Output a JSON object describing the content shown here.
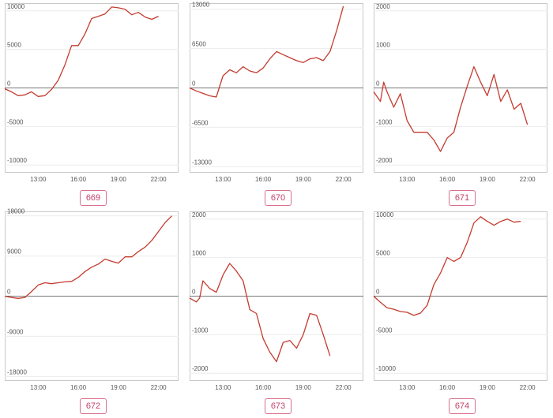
{
  "chart_data": [
    {
      "type": "line",
      "label": "669",
      "ylim": [
        -11000,
        11000
      ],
      "yticks": [
        10000,
        5000,
        0,
        -5000,
        -10000
      ],
      "xlim": [
        10.5,
        23.5
      ],
      "xticks": [
        {
          "v": 13,
          "t": "13:00"
        },
        {
          "v": 16,
          "t": "16:00"
        },
        {
          "v": 19,
          "t": "19:00"
        },
        {
          "v": 22,
          "t": "22:00"
        }
      ],
      "x": [
        10.5,
        11,
        11.5,
        12,
        12.5,
        13,
        13.5,
        14,
        14.5,
        15,
        15.5,
        16,
        16.5,
        17,
        17.5,
        18,
        18.5,
        19,
        19.5,
        20,
        20.5,
        21,
        21.5,
        22
      ],
      "values": [
        -100,
        -500,
        -1000,
        -900,
        -500,
        -1100,
        -1000,
        -200,
        1000,
        3000,
        5500,
        5500,
        7000,
        9000,
        9300,
        9600,
        10500,
        10400,
        10200,
        9500,
        9800,
        9200,
        8900,
        9300
      ]
    },
    {
      "type": "line",
      "label": "670",
      "ylim": [
        -14000,
        14000
      ],
      "yticks": [
        13000,
        6500,
        0,
        -6500,
        -13000
      ],
      "xlim": [
        10.5,
        23.5
      ],
      "xticks": [
        {
          "v": 13,
          "t": "13:00"
        },
        {
          "v": 16,
          "t": "16:00"
        },
        {
          "v": 19,
          "t": "19:00"
        },
        {
          "v": 22,
          "t": "22:00"
        }
      ],
      "x": [
        10.5,
        11,
        11.5,
        12,
        12.5,
        13,
        13.5,
        14,
        14.5,
        15,
        15.5,
        16,
        16.5,
        17,
        17.5,
        18,
        18.5,
        19,
        19.5,
        20,
        20.5,
        21,
        21.5,
        22
      ],
      "values": [
        0,
        -500,
        -900,
        -1300,
        -1500,
        2000,
        3000,
        2500,
        3500,
        2800,
        2500,
        3300,
        4800,
        6000,
        5500,
        5000,
        4500,
        4200,
        4800,
        5000,
        4500,
        6000,
        9500,
        13500
      ]
    },
    {
      "type": "line",
      "label": "671",
      "ylim": [
        -2200,
        2200
      ],
      "yticks": [
        2000,
        1000,
        0,
        -1000,
        -2000
      ],
      "xlim": [
        10.5,
        23.5
      ],
      "xticks": [
        {
          "v": 13,
          "t": "13:00"
        },
        {
          "v": 16,
          "t": "16:00"
        },
        {
          "v": 19,
          "t": "19:00"
        },
        {
          "v": 22,
          "t": "22:00"
        }
      ],
      "x": [
        10.5,
        11,
        11.25,
        11.5,
        12,
        12.5,
        13,
        13.5,
        14,
        14.5,
        15,
        15.5,
        16,
        16.5,
        17,
        17.5,
        18,
        18.5,
        19,
        19.5,
        20,
        20.5,
        21,
        21.5,
        22
      ],
      "values": [
        -100,
        -350,
        150,
        -100,
        -500,
        -150,
        -850,
        -1150,
        -1150,
        -1150,
        -1350,
        -1650,
        -1300,
        -1150,
        -500,
        50,
        550,
        150,
        -200,
        350,
        -350,
        -50,
        -550,
        -400,
        -950
      ]
    },
    {
      "type": "line",
      "label": "672",
      "ylim": [
        -19000,
        19000
      ],
      "yticks": [
        18000,
        9000,
        0,
        -9000,
        -18000
      ],
      "xlim": [
        10.5,
        23.5
      ],
      "xticks": [
        {
          "v": 13,
          "t": "13:00"
        },
        {
          "v": 16,
          "t": "16:00"
        },
        {
          "v": 19,
          "t": "19:00"
        },
        {
          "v": 22,
          "t": "22:00"
        }
      ],
      "x": [
        10.5,
        11,
        11.5,
        12,
        12.5,
        13,
        13.5,
        14,
        14.5,
        15,
        15.5,
        16,
        16.5,
        17,
        17.5,
        18,
        18.5,
        19,
        19.5,
        20,
        20.5,
        21,
        21.5,
        22,
        22.5,
        23
      ],
      "values": [
        0,
        -300,
        -500,
        -300,
        1000,
        2500,
        3000,
        2800,
        3000,
        3200,
        3300,
        4200,
        5500,
        6500,
        7200,
        8300,
        7800,
        7400,
        8800,
        8800,
        10000,
        11000,
        12500,
        14500,
        16500,
        18000
      ]
    },
    {
      "type": "line",
      "label": "673",
      "ylim": [
        -2200,
        2200
      ],
      "yticks": [
        2000,
        1000,
        0,
        -1000,
        -2000
      ],
      "xlim": [
        10.5,
        23.5
      ],
      "xticks": [
        {
          "v": 13,
          "t": "13:00"
        },
        {
          "v": 16,
          "t": "16:00"
        },
        {
          "v": 19,
          "t": "19:00"
        },
        {
          "v": 22,
          "t": "22:00"
        }
      ],
      "x": [
        10.5,
        11,
        11.25,
        11.5,
        12,
        12.5,
        13,
        13.5,
        14,
        14.5,
        15,
        15.5,
        16,
        16.5,
        17,
        17.5,
        18,
        18.5,
        19,
        19.5,
        20,
        20.5,
        21
      ],
      "values": [
        -50,
        -150,
        -50,
        400,
        200,
        100,
        550,
        850,
        650,
        400,
        -350,
        -450,
        -1100,
        -1450,
        -1700,
        -1200,
        -1150,
        -1350,
        -1000,
        -450,
        -500,
        -1000,
        -1550
      ]
    },
    {
      "type": "line",
      "label": "674",
      "ylim": [
        -11000,
        11000
      ],
      "yticks": [
        10000,
        5000,
        0,
        -5000,
        -10000
      ],
      "xlim": [
        10.5,
        23.5
      ],
      "xticks": [
        {
          "v": 13,
          "t": "13:00"
        },
        {
          "v": 16,
          "t": "16:00"
        },
        {
          "v": 19,
          "t": "19:00"
        },
        {
          "v": 22,
          "t": "22:00"
        }
      ],
      "x": [
        10.5,
        11,
        11.5,
        12,
        12.5,
        13,
        13.5,
        14,
        14.5,
        15,
        15.5,
        16,
        16.5,
        17,
        17.5,
        18,
        18.5,
        19,
        19.5,
        20,
        20.5,
        21,
        21.5
      ],
      "values": [
        0,
        -800,
        -1500,
        -1700,
        -2000,
        -2100,
        -2500,
        -2200,
        -1200,
        1500,
        3000,
        5000,
        4500,
        5000,
        7000,
        9500,
        10300,
        9700,
        9200,
        9700,
        10000,
        9600,
        9700
      ]
    }
  ]
}
